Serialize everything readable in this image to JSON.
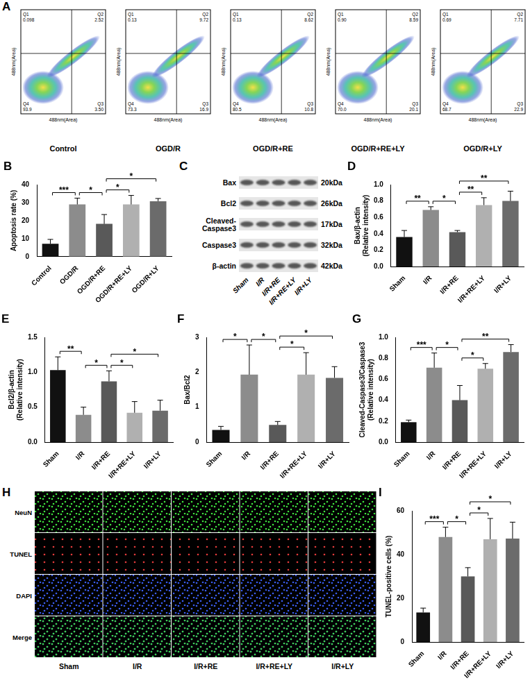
{
  "flow_cytometry": {
    "panel": "A",
    "x_label": "488nm(Area)",
    "y_label": "488nm(Area)",
    "plots": [
      {
        "label": "Control",
        "quadrants": [
          {
            "name": "Q1",
            "value": "0.098"
          },
          {
            "name": "Q2",
            "value": "2.52"
          },
          {
            "name": "Q3",
            "value": "3.50"
          },
          {
            "name": "Q4",
            "value": "93.9"
          }
        ]
      },
      {
        "label": "OGD/R",
        "quadrants": [
          {
            "name": "Q1",
            "value": "0.13"
          },
          {
            "name": "Q2",
            "value": "9.72"
          },
          {
            "name": "Q3",
            "value": "16.9"
          },
          {
            "name": "Q4",
            "value": "73.3"
          }
        ]
      },
      {
        "label": "OGD/R+RE",
        "quadrants": [
          {
            "name": "Q1",
            "value": "0.13"
          },
          {
            "name": "Q2",
            "value": "8.62"
          },
          {
            "name": "Q3",
            "value": "10.8"
          },
          {
            "name": "Q4",
            "value": "80.5"
          }
        ]
      },
      {
        "label": "OGD/R+RE+LY",
        "quadrants": [
          {
            "name": "Q1",
            "value": "0.90"
          },
          {
            "name": "Q2",
            "value": "8.59"
          },
          {
            "name": "Q3",
            "value": "20.1"
          },
          {
            "name": "Q4",
            "value": "70.0"
          }
        ]
      },
      {
        "label": "OGD/R+LY",
        "quadrants": [
          {
            "name": "Q1",
            "value": "0.69"
          },
          {
            "name": "Q2",
            "value": "7.71"
          },
          {
            "name": "Q3",
            "value": "22.9"
          },
          {
            "name": "Q4",
            "value": "68.7"
          }
        ]
      }
    ]
  },
  "western_blot": {
    "panel": "C",
    "rows": [
      {
        "name": "Bax",
        "size": "20kDa"
      },
      {
        "name": "Bcl2",
        "size": "26kDa"
      },
      {
        "name": "Cleaved-Caspase3",
        "size": "17kDa"
      },
      {
        "name": "Caspase3",
        "size": "32kDa"
      },
      {
        "name": "β-actin",
        "size": "42kDa"
      }
    ],
    "lanes": [
      "Sham",
      "I/R",
      "I/R+RE",
      "I/R+RE+LY",
      "I/R+LY"
    ]
  },
  "staining": {
    "panel": "H",
    "rows": [
      "NeuN",
      "TUNEL",
      "DAPI",
      "Merge"
    ],
    "columns": [
      "Sham",
      "I/R",
      "I/R+RE",
      "I/R+RE+LY",
      "I/R+LY"
    ]
  },
  "chart_data": [
    {
      "panel": "B",
      "type": "bar",
      "y_label": "Apoptosis rate (%)",
      "categories": [
        "Control",
        "OGD/R",
        "OGD/R+RE",
        "OGD/R+RE+LY",
        "OGD/R+LY"
      ],
      "values": [
        7.2,
        29,
        18.2,
        29,
        30.8
      ],
      "errors": [
        2.4,
        3.5,
        5.2,
        5,
        1.5
      ],
      "colors": [
        "#111111",
        "#8c8c8c",
        "#595959",
        "#b0b0b0",
        "#6b6b6b"
      ],
      "ylim": [
        0,
        40
      ],
      "yticks": [
        0,
        10,
        20,
        30,
        40
      ],
      "grid": false,
      "significance": [
        {
          "from": "Control",
          "to": "OGD/R",
          "label": "***"
        },
        {
          "from": "OGD/R",
          "to": "OGD/R+RE",
          "label": "*"
        },
        {
          "from": "OGD/R+RE",
          "to": "OGD/R+RE+LY",
          "label": "*"
        },
        {
          "from": "OGD/R+RE",
          "to": "OGD/R+LY",
          "label": "*"
        }
      ]
    },
    {
      "panel": "D",
      "type": "bar",
      "y_label": [
        "Bax/β-actin",
        "(Relative intensity)"
      ],
      "categories": [
        "Sham",
        "I/R",
        "I/R+RE",
        "I/R+RE+LY",
        "I/R+LY"
      ],
      "values": [
        0.36,
        0.69,
        0.42,
        0.75,
        0.8
      ],
      "errors": [
        0.08,
        0.04,
        0.02,
        0.09,
        0.12
      ],
      "colors": [
        "#111111",
        "#8c8c8c",
        "#595959",
        "#b0b0b0",
        "#6b6b6b"
      ],
      "ylim": [
        0,
        1
      ],
      "yticks": [
        {
          "value": 0,
          "label": "0.0"
        },
        0.2,
        0.4,
        0.6,
        0.8,
        {
          "value": 1,
          "label": "1.0"
        }
      ],
      "grid": false,
      "significance": [
        {
          "from": "Sham",
          "to": "I/R",
          "label": "**"
        },
        {
          "from": "I/R",
          "to": "I/R+RE",
          "label": "*"
        },
        {
          "from": "I/R+RE",
          "to": "I/R+RE+LY",
          "label": "**"
        },
        {
          "from": "I/R+RE",
          "to": "I/R+LY",
          "label": "**"
        }
      ]
    },
    {
      "panel": "E",
      "type": "bar",
      "y_label": [
        "Bcl2/β-actin",
        "(Relative intensity)"
      ],
      "categories": [
        "Sham",
        "I/R",
        "I/R+RE",
        "I/R+RE+LY",
        "I/R+LY"
      ],
      "values": [
        1.03,
        0.39,
        0.87,
        0.42,
        0.45
      ],
      "errors": [
        0.19,
        0.11,
        0.15,
        0.16,
        0.15
      ],
      "colors": [
        "#111111",
        "#8c8c8c",
        "#595959",
        "#b0b0b0",
        "#6b6b6b"
      ],
      "ylim": [
        0,
        1.5
      ],
      "yticks": [
        {
          "value": 0,
          "label": "0.0"
        },
        0.5,
        {
          "value": 1,
          "label": "1.0"
        },
        1.5
      ],
      "grid": false,
      "significance": [
        {
          "from": "Sham",
          "to": "I/R",
          "label": "**"
        },
        {
          "from": "I/R",
          "to": "I/R+RE",
          "label": "*"
        },
        {
          "from": "I/R+RE",
          "to": "I/R+RE+LY",
          "label": "*"
        },
        {
          "from": "I/R+RE",
          "to": "I/R+LY",
          "label": "*"
        }
      ]
    },
    {
      "panel": "F",
      "type": "bar",
      "y_label": "Bax/Bcl2",
      "categories": [
        "Sham",
        "I/R",
        "I/R+RE",
        "I/R+RE+LY",
        "I/R+LY"
      ],
      "values": [
        0.35,
        1.93,
        0.49,
        1.93,
        1.84
      ],
      "errors": [
        0.1,
        0.85,
        0.1,
        0.63,
        0.32
      ],
      "colors": [
        "#111111",
        "#8c8c8c",
        "#595959",
        "#b0b0b0",
        "#6b6b6b"
      ],
      "ylim": [
        0,
        3
      ],
      "yticks": [
        0,
        1,
        2,
        3
      ],
      "grid": false,
      "significance": [
        {
          "from": "Sham",
          "to": "I/R",
          "label": "*"
        },
        {
          "from": "I/R",
          "to": "I/R+RE",
          "label": "*"
        },
        {
          "from": "I/R+RE",
          "to": "I/R+RE+LY",
          "label": "*"
        },
        {
          "from": "I/R+RE",
          "to": "I/R+LY",
          "label": "*"
        }
      ]
    },
    {
      "panel": "G",
      "type": "bar",
      "y_label": [
        "Cleaved-Caspase3/Caspase3",
        "(Relative intensity)"
      ],
      "categories": [
        "Sham",
        "I/R",
        "I/R+RE",
        "I/R+RE+LY",
        "I/R+LY"
      ],
      "values": [
        0.19,
        0.71,
        0.4,
        0.7,
        0.86
      ],
      "errors": [
        0.02,
        0.14,
        0.14,
        0.05,
        0.07
      ],
      "colors": [
        "#111111",
        "#8c8c8c",
        "#595959",
        "#b0b0b0",
        "#6b6b6b"
      ],
      "ylim": [
        0,
        1
      ],
      "yticks": [
        {
          "value": 0,
          "label": "0.0"
        },
        0.2,
        0.4,
        0.6,
        0.8,
        {
          "value": 1,
          "label": "1.0"
        }
      ],
      "grid": false,
      "significance": [
        {
          "from": "Sham",
          "to": "I/R",
          "label": "***"
        },
        {
          "from": "I/R",
          "to": "I/R+RE",
          "label": "*"
        },
        {
          "from": "I/R+RE",
          "to": "I/R+RE+LY",
          "label": "*"
        },
        {
          "from": "I/R+RE",
          "to": "I/R+LY",
          "label": "**"
        }
      ]
    },
    {
      "panel": "I",
      "type": "bar",
      "y_label": "TUNEL-positive cells (%)",
      "categories": [
        "Sham",
        "I/R",
        "I/R+RE",
        "I/R+RE+LY",
        "I/R+LY"
      ],
      "values": [
        13.5,
        48,
        30,
        47,
        47.3
      ],
      "errors": [
        2,
        4.5,
        4,
        9.5,
        7.5
      ],
      "colors": [
        "#111111",
        "#8c8c8c",
        "#595959",
        "#b0b0b0",
        "#6b6b6b"
      ],
      "ylim": [
        0,
        60
      ],
      "yticks": [
        0,
        20,
        40,
        60
      ],
      "grid": false,
      "significance": [
        {
          "from": "Sham",
          "to": "I/R",
          "label": "***"
        },
        {
          "from": "I/R",
          "to": "I/R+RE",
          "label": "*"
        },
        {
          "from": "I/R+RE",
          "to": "I/R+RE+LY",
          "label": "*"
        },
        {
          "from": "I/R+RE",
          "to": "I/R+LY",
          "label": "*"
        }
      ]
    }
  ]
}
